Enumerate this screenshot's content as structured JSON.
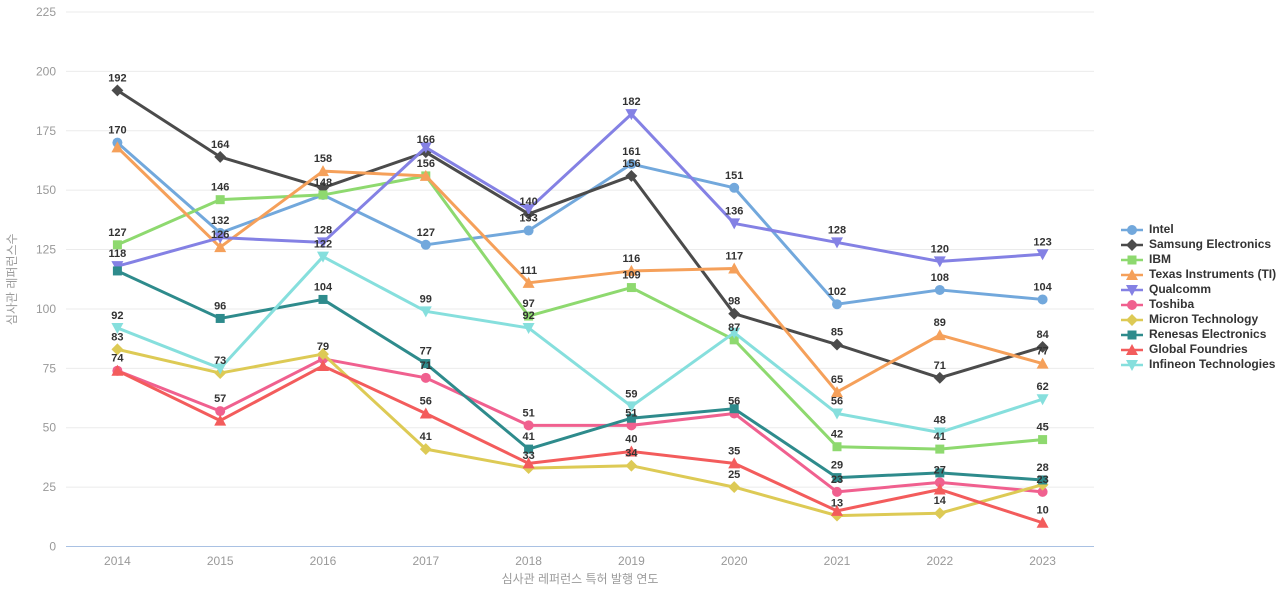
{
  "chart_data": {
    "type": "line",
    "x": [
      "2014",
      "2015",
      "2016",
      "2017",
      "2018",
      "2019",
      "2020",
      "2021",
      "2022",
      "2023"
    ],
    "xlabel": "심사관 레퍼런스 특허 발행 연도",
    "ylabel": "심사관 레퍼런스수",
    "ylim": [
      0,
      225
    ],
    "ytick_step": 25,
    "yticks": [
      0,
      25,
      50,
      75,
      100,
      125,
      150,
      175,
      200,
      225
    ],
    "grid": true,
    "legend_position": "right",
    "series": [
      {
        "name": "Intel",
        "color": "#72a8dc",
        "symbol": "circle",
        "values": [
          170,
          132,
          148,
          127,
          133,
          161,
          151,
          102,
          108,
          104
        ]
      },
      {
        "name": "Samsung Electronics",
        "color": "#4b4b4b",
        "symbol": "diamond",
        "values": [
          192,
          164,
          151,
          166,
          140,
          156,
          98,
          85,
          71,
          84
        ]
      },
      {
        "name": "IBM",
        "color": "#8ed96f",
        "symbol": "square",
        "values": [
          127,
          146,
          148,
          156,
          97,
          109,
          87,
          42,
          41,
          45
        ]
      },
      {
        "name": "Texas Instruments (TI)",
        "color": "#f5a05a",
        "symbol": "triangle",
        "values": [
          168,
          126,
          158,
          156,
          111,
          116,
          117,
          65,
          89,
          77
        ]
      },
      {
        "name": "Qualcomm",
        "color": "#8481e4",
        "symbol": "triangle-down",
        "values": [
          118,
          130,
          128,
          168,
          142,
          182,
          136,
          128,
          120,
          123
        ]
      },
      {
        "name": "Toshiba",
        "color": "#f0608f",
        "symbol": "circle",
        "values": [
          74,
          57,
          79,
          71,
          51,
          51,
          56,
          23,
          27,
          23
        ]
      },
      {
        "name": "Micron Technology",
        "color": "#ddca55",
        "symbol": "diamond",
        "values": [
          83,
          73,
          81,
          41,
          33,
          34,
          25,
          13,
          14,
          26
        ]
      },
      {
        "name": "Renesas Electronics",
        "color": "#2e8b8c",
        "symbol": "square",
        "values": [
          116,
          96,
          104,
          77,
          41,
          54,
          58,
          29,
          31,
          28
        ]
      },
      {
        "name": "Global Foundries",
        "color": "#f35c5c",
        "symbol": "triangle",
        "values": [
          74,
          53,
          76,
          56,
          35,
          40,
          35,
          15,
          24,
          10
        ]
      },
      {
        "name": "Infineon Technologies",
        "color": "#86dfdd",
        "symbol": "triangle-down",
        "values": [
          92,
          75,
          122,
          99,
          92,
          59,
          90,
          56,
          48,
          62
        ]
      }
    ]
  },
  "style_colors": {
    "grid_line": "#ebebeb",
    "axis_line": "#a9c1e3",
    "tick_text": "#999999",
    "data_label_text": "#333333",
    "legend_text": "#333333",
    "background": "#ffffff"
  }
}
